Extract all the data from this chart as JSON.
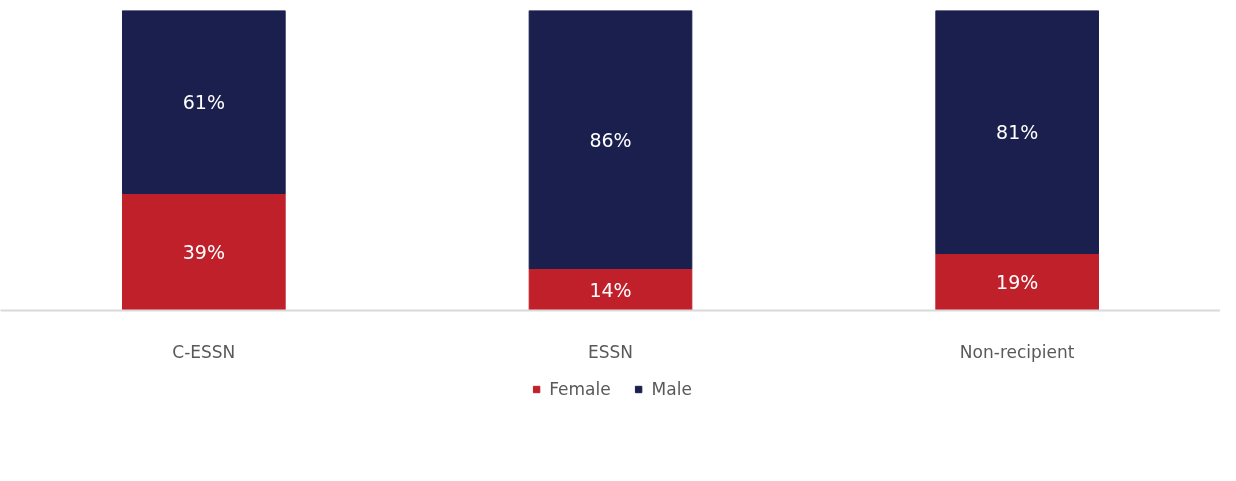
{
  "chart_data": {
    "type": "bar",
    "stacked": true,
    "categories": [
      "C-ESSN",
      "ESSN",
      "Non-recipient"
    ],
    "series": [
      {
        "name": "Female",
        "color": "#c0202a",
        "values": [
          39,
          14,
          19
        ],
        "value_labels": [
          "39%",
          "14%",
          "19%"
        ]
      },
      {
        "name": "Male",
        "color": "#1a1f4d",
        "values": [
          61,
          86,
          81
        ],
        "value_labels": [
          "61%",
          "86%",
          "81%"
        ]
      }
    ],
    "tick_labels": "x",
    "legend": "bottom",
    "grid": false
  }
}
